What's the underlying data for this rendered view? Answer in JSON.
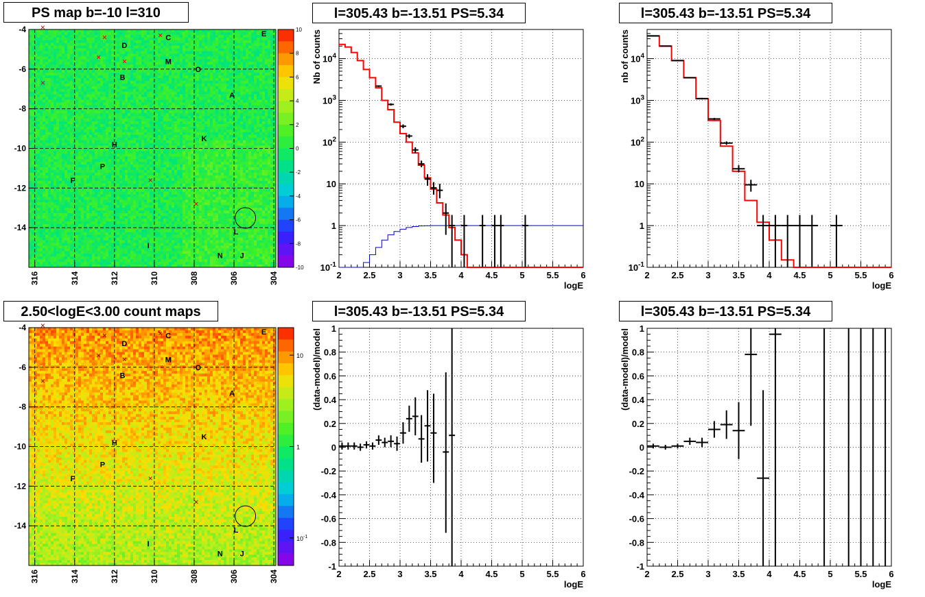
{
  "titles": {
    "psmap": "PS map b=-10 l=310",
    "spec1": "l=305.43 b=-13.51 PS=5.34",
    "spec2": "l=305.43 b=-13.51 PS=5.34",
    "countmap": "2.50<logE<3.00 count maps",
    "res1": "l=305.43 b=-13.51 PS=5.34",
    "res2": "l=305.43 b=-13.51 PS=5.34"
  },
  "map_labels": [
    {
      "t": "E",
      "l": 304.5,
      "b": -4.2
    },
    {
      "t": "C",
      "l": 309.3,
      "b": -4.4
    },
    {
      "t": "D",
      "l": 311.5,
      "b": -4.8
    },
    {
      "t": "M",
      "l": 309.3,
      "b": -5.6
    },
    {
      "t": "O",
      "l": 307.8,
      "b": -6.0
    },
    {
      "t": "B",
      "l": 311.6,
      "b": -6.4
    },
    {
      "t": "A",
      "l": 306.1,
      "b": -7.3
    },
    {
      "t": "H",
      "l": 312.0,
      "b": -9.8
    },
    {
      "t": "K",
      "l": 307.5,
      "b": -9.5
    },
    {
      "t": "P",
      "l": 312.6,
      "b": -10.9
    },
    {
      "t": "F",
      "l": 314.1,
      "b": -11.6
    },
    {
      "t": "L",
      "l": 305.9,
      "b": -14.2
    },
    {
      "t": "I",
      "l": 310.3,
      "b": -14.9
    },
    {
      "t": "N",
      "l": 306.7,
      "b": -15.4
    },
    {
      "t": "J",
      "l": 305.6,
      "b": -15.4
    }
  ],
  "map_crosses": [
    {
      "l": 315.6,
      "b": -3.9
    },
    {
      "l": 312.5,
      "b": -4.4
    },
    {
      "l": 309.7,
      "b": -4.3
    },
    {
      "l": 312.8,
      "b": -5.4
    },
    {
      "l": 311.5,
      "b": -5.6
    },
    {
      "l": 315.6,
      "b": -6.7
    },
    {
      "l": 310.2,
      "b": -11.6
    },
    {
      "l": 307.9,
      "b": -12.8
    }
  ],
  "map_circle": {
    "l": 305.43,
    "b": -13.51
  },
  "chart_data": [
    {
      "type": "heatmap",
      "title": "PS map b=-10 l=310",
      "xlim": [
        316.3,
        303.9
      ],
      "ylim": [
        -16,
        -4
      ],
      "xticks": [
        316,
        314,
        312,
        310,
        308,
        306,
        304
      ],
      "yticks": [
        -4,
        -6,
        -8,
        -10,
        -12,
        -14
      ],
      "colorbar": {
        "min": -10,
        "max": 10,
        "ticks": [
          10,
          8,
          6,
          4,
          2,
          0,
          -2,
          -4,
          -6,
          -8,
          -10
        ]
      }
    },
    {
      "type": "line",
      "title": "l=305.43 b=-13.51 PS=5.34",
      "xlabel": "logE",
      "ylabel": "Nb of counts",
      "yscale": "log",
      "xlim": [
        2,
        6
      ],
      "ylim": [
        0.1,
        50000
      ],
      "xticks": [
        2,
        2.5,
        3,
        3.5,
        4,
        4.5,
        5,
        5.5,
        6
      ],
      "yticks": [
        {
          "v": 0.1,
          "t": "10",
          "sup": "-1"
        },
        {
          "v": 1,
          "t": "1",
          "sup": ""
        },
        {
          "v": 10,
          "t": "10",
          "sup": ""
        },
        {
          "v": 100,
          "t": "10",
          "sup": "2"
        },
        {
          "v": 1000,
          "t": "10",
          "sup": "3"
        },
        {
          "v": 10000,
          "t": "10",
          "sup": "4"
        }
      ],
      "model_red": {
        "edges": [
          2.0,
          2.1,
          2.2,
          2.3,
          2.4,
          2.5,
          2.6,
          2.7,
          2.8,
          2.9,
          3.0,
          3.1,
          3.2,
          3.3,
          3.4,
          3.5,
          3.6,
          3.7,
          3.8,
          3.9,
          4.0,
          4.1,
          4.2,
          6.0
        ],
        "values": [
          22000,
          19000,
          14000,
          9000,
          5500,
          3500,
          2000,
          1000,
          600,
          300,
          160,
          100,
          55,
          28,
          14,
          7.5,
          3.5,
          1.8,
          0.9,
          0.45,
          0.2,
          0.1,
          0.1
        ]
      },
      "model_blue": {
        "edges": [
          2.0,
          2.1,
          2.2,
          2.3,
          2.4,
          2.5,
          2.6,
          2.7,
          2.8,
          2.9,
          3.0,
          3.1,
          3.2,
          3.3,
          3.4,
          3.5,
          6.0
        ],
        "values": [
          0.1,
          0.1,
          0.1,
          0.1,
          0.13,
          0.2,
          0.3,
          0.45,
          0.6,
          0.72,
          0.82,
          0.9,
          0.95,
          0.98,
          0.99,
          1.0
        ]
      },
      "data": [
        {
          "x": 2.65,
          "y": 2200,
          "ylo": 2100,
          "yhi": 2300
        },
        {
          "x": 2.85,
          "y": 800,
          "ylo": 750,
          "yhi": 850
        },
        {
          "x": 3.05,
          "y": 240,
          "ylo": 215,
          "yhi": 265
        },
        {
          "x": 3.15,
          "y": 140,
          "ylo": 125,
          "yhi": 155
        },
        {
          "x": 3.25,
          "y": 65,
          "ylo": 55,
          "yhi": 75
        },
        {
          "x": 3.35,
          "y": 30,
          "ylo": 25,
          "yhi": 36
        },
        {
          "x": 3.45,
          "y": 13,
          "ylo": 9,
          "yhi": 17
        },
        {
          "x": 3.55,
          "y": 8,
          "ylo": 5.5,
          "yhi": 11
        },
        {
          "x": 3.65,
          "y": 7,
          "ylo": 4.5,
          "yhi": 10
        },
        {
          "x": 3.75,
          "y": 2,
          "ylo": 0.6,
          "yhi": 3.4
        },
        {
          "x": 3.85,
          "y": 1,
          "ylo": 0.1,
          "yhi": 1.8
        },
        {
          "x": 4.05,
          "y": 1,
          "ylo": 0.1,
          "yhi": 1.8
        },
        {
          "x": 4.35,
          "y": 1,
          "ylo": 0.1,
          "yhi": 1.8
        },
        {
          "x": 4.55,
          "y": 1,
          "ylo": 0.1,
          "yhi": 1.8
        },
        {
          "x": 4.65,
          "y": 1,
          "ylo": 0.1,
          "yhi": 1.8
        },
        {
          "x": 5.05,
          "y": 1,
          "ylo": 0.1,
          "yhi": 1.8
        }
      ]
    },
    {
      "type": "line",
      "title": "l=305.43 b=-13.51 PS=5.34",
      "xlabel": "logE",
      "ylabel": "nb of counts",
      "yscale": "log",
      "xlim": [
        2,
        6
      ],
      "ylim": [
        0.1,
        50000
      ],
      "xticks": [
        2,
        2.5,
        3,
        3.5,
        4,
        4.5,
        5,
        5.5,
        6
      ],
      "yticks": [
        {
          "v": 0.1,
          "t": "10",
          "sup": "-1"
        },
        {
          "v": 1,
          "t": "1",
          "sup": ""
        },
        {
          "v": 10,
          "t": "10",
          "sup": ""
        },
        {
          "v": 100,
          "t": "10",
          "sup": "2"
        },
        {
          "v": 1000,
          "t": "10",
          "sup": "3"
        },
        {
          "v": 10000,
          "t": "10",
          "sup": "4"
        }
      ],
      "model_red": {
        "edges": [
          2.0,
          2.2,
          2.4,
          2.6,
          2.8,
          3.0,
          3.2,
          3.4,
          3.6,
          3.8,
          4.0,
          4.2,
          4.4,
          6.0
        ],
        "values": [
          35000,
          20000,
          9000,
          3500,
          1100,
          330,
          80,
          20,
          4,
          1.2,
          0.45,
          0.15,
          0.1
        ]
      },
      "data": [
        {
          "x": 2.1,
          "y": 35000,
          "ylo": 34000,
          "yhi": 36000,
          "xw": 0.1
        },
        {
          "x": 2.3,
          "y": 20000,
          "ylo": 19500,
          "yhi": 20500,
          "xw": 0.1
        },
        {
          "x": 2.5,
          "y": 9000,
          "ylo": 8800,
          "yhi": 9200,
          "xw": 0.1
        },
        {
          "x": 2.7,
          "y": 3500,
          "ylo": 3400,
          "yhi": 3600,
          "xw": 0.1
        },
        {
          "x": 2.9,
          "y": 1100,
          "ylo": 1050,
          "yhi": 1150,
          "xw": 0.1
        },
        {
          "x": 3.1,
          "y": 360,
          "ylo": 340,
          "yhi": 380,
          "xw": 0.1
        },
        {
          "x": 3.3,
          "y": 95,
          "ylo": 86,
          "yhi": 104,
          "xw": 0.1
        },
        {
          "x": 3.5,
          "y": 23,
          "ylo": 19,
          "yhi": 28,
          "xw": 0.1
        },
        {
          "x": 3.7,
          "y": 9.5,
          "ylo": 6.5,
          "yhi": 12.5,
          "xw": 0.1
        },
        {
          "x": 3.9,
          "y": 1,
          "ylo": 0.1,
          "yhi": 1.8,
          "xw": 0.1
        },
        {
          "x": 4.1,
          "y": 1,
          "ylo": 0.1,
          "yhi": 1.8,
          "xw": 0.1
        },
        {
          "x": 4.3,
          "y": 1,
          "ylo": 0.1,
          "yhi": 1.8,
          "xw": 0.1
        },
        {
          "x": 4.5,
          "y": 1,
          "ylo": 0.1,
          "yhi": 1.8,
          "xw": 0.1
        },
        {
          "x": 4.7,
          "y": 1,
          "ylo": 0.1,
          "yhi": 1.8,
          "xw": 0.1
        },
        {
          "x": 5.1,
          "y": 1,
          "ylo": 0.1,
          "yhi": 1.8,
          "xw": 0.1
        }
      ]
    },
    {
      "type": "heatmap",
      "title": "2.50<logE<3.00 count maps",
      "xlim": [
        316.3,
        303.9
      ],
      "ylim": [
        -16,
        -4
      ],
      "xticks": [
        316,
        314,
        312,
        310,
        308,
        306,
        304
      ],
      "yticks": [
        -4,
        -6,
        -8,
        -10,
        -12,
        -14
      ],
      "colorbar": {
        "scale": "log",
        "min": 0.05,
        "max": 20,
        "ticks": [
          {
            "v": 10,
            "t": "10",
            "sup": ""
          },
          {
            "v": 1,
            "t": "1",
            "sup": ""
          },
          {
            "v": 0.1,
            "t": "10",
            "sup": "-1"
          }
        ]
      }
    },
    {
      "type": "scatter",
      "title": "l=305.43 b=-13.51 PS=5.34",
      "xlabel": "logE",
      "ylabel": "(data-model)/model",
      "xlim": [
        2,
        6
      ],
      "ylim": [
        -1,
        1
      ],
      "xticks": [
        2,
        2.5,
        3,
        3.5,
        4,
        4.5,
        5,
        5.5,
        6
      ],
      "yticks": [
        1,
        0.8,
        0.6,
        0.4,
        0.2,
        0,
        -0.2,
        -0.4,
        -0.6,
        -0.8,
        -1
      ],
      "data": [
        {
          "x": 2.05,
          "y": 0.01,
          "ylo": -0.02,
          "yhi": 0.04,
          "xw": 0.05
        },
        {
          "x": 2.15,
          "y": 0.01,
          "ylo": -0.02,
          "yhi": 0.04,
          "xw": 0.05
        },
        {
          "x": 2.25,
          "y": 0.01,
          "ylo": -0.02,
          "yhi": 0.04,
          "xw": 0.05
        },
        {
          "x": 2.35,
          "y": 0.0,
          "ylo": -0.03,
          "yhi": 0.03,
          "xw": 0.05
        },
        {
          "x": 2.45,
          "y": 0.02,
          "ylo": -0.01,
          "yhi": 0.05,
          "xw": 0.05
        },
        {
          "x": 2.55,
          "y": 0.01,
          "ylo": -0.02,
          "yhi": 0.04,
          "xw": 0.05
        },
        {
          "x": 2.65,
          "y": 0.06,
          "ylo": 0.02,
          "yhi": 0.1,
          "xw": 0.05
        },
        {
          "x": 2.75,
          "y": 0.04,
          "ylo": 0.0,
          "yhi": 0.08,
          "xw": 0.05
        },
        {
          "x": 2.85,
          "y": 0.05,
          "ylo": 0.0,
          "yhi": 0.1,
          "xw": 0.05
        },
        {
          "x": 2.95,
          "y": 0.03,
          "ylo": -0.03,
          "yhi": 0.09,
          "xw": 0.05
        },
        {
          "x": 3.05,
          "y": 0.12,
          "ylo": 0.03,
          "yhi": 0.21,
          "xw": 0.05
        },
        {
          "x": 3.15,
          "y": 0.24,
          "ylo": 0.13,
          "yhi": 0.35,
          "xw": 0.05
        },
        {
          "x": 3.25,
          "y": 0.26,
          "ylo": 0.1,
          "yhi": 0.42,
          "xw": 0.05
        },
        {
          "x": 3.35,
          "y": 0.07,
          "ylo": -0.13,
          "yhi": 0.27,
          "xw": 0.05
        },
        {
          "x": 3.45,
          "y": 0.18,
          "ylo": -0.12,
          "yhi": 0.48,
          "xw": 0.05
        },
        {
          "x": 3.55,
          "y": 0.12,
          "ylo": -0.3,
          "yhi": 0.45,
          "xw": 0.05
        },
        {
          "x": 3.75,
          "y": -0.04,
          "ylo": -0.72,
          "yhi": 0.63,
          "xw": 0.05
        },
        {
          "x": 3.85,
          "y": 0.1,
          "ylo": -1,
          "yhi": 1,
          "xw": 0.05
        }
      ]
    },
    {
      "type": "scatter",
      "title": "l=305.43 b=-13.51 PS=5.34",
      "xlabel": "logE",
      "ylabel": "(data-model)/model",
      "xlim": [
        2,
        6
      ],
      "ylim": [
        -1,
        1
      ],
      "xticks": [
        2,
        2.5,
        3,
        3.5,
        4,
        4.5,
        5,
        5.5,
        6
      ],
      "yticks": [
        1,
        0.8,
        0.6,
        0.4,
        0.2,
        0,
        -0.2,
        -0.4,
        -0.6,
        -0.8,
        -1
      ],
      "data": [
        {
          "x": 2.1,
          "y": 0.01,
          "ylo": -0.01,
          "yhi": 0.03,
          "xw": 0.1
        },
        {
          "x": 2.3,
          "y": 0.0,
          "ylo": -0.02,
          "yhi": 0.02,
          "xw": 0.1
        },
        {
          "x": 2.5,
          "y": 0.01,
          "ylo": -0.01,
          "yhi": 0.03,
          "xw": 0.1
        },
        {
          "x": 2.7,
          "y": 0.05,
          "ylo": 0.02,
          "yhi": 0.08,
          "xw": 0.1
        },
        {
          "x": 2.9,
          "y": 0.04,
          "ylo": 0.0,
          "yhi": 0.08,
          "xw": 0.1
        },
        {
          "x": 3.1,
          "y": 0.15,
          "ylo": 0.08,
          "yhi": 0.22,
          "xw": 0.1
        },
        {
          "x": 3.3,
          "y": 0.19,
          "ylo": 0.07,
          "yhi": 0.31,
          "xw": 0.1
        },
        {
          "x": 3.5,
          "y": 0.14,
          "ylo": -0.1,
          "yhi": 0.38,
          "xw": 0.1
        },
        {
          "x": 3.7,
          "y": 0.78,
          "ylo": 0.18,
          "yhi": 1.0,
          "xw": 0.1
        },
        {
          "x": 3.9,
          "y": -0.26,
          "ylo": -1,
          "yhi": 0.48,
          "xw": 0.1
        },
        {
          "x": 4.1,
          "y": 0.95,
          "ylo": -1,
          "yhi": 1,
          "xw": 0.1
        },
        {
          "x": 4.9,
          "y": 1.0,
          "ylo": -1,
          "yhi": 1,
          "xw": 0.0
        },
        {
          "x": 5.3,
          "y": 1.0,
          "ylo": -1,
          "yhi": 1,
          "xw": 0.0
        },
        {
          "x": 5.5,
          "y": 1.0,
          "ylo": -1,
          "yhi": 1,
          "xw": 0.0
        },
        {
          "x": 5.7,
          "y": 1.0,
          "ylo": -1,
          "yhi": 1,
          "xw": 0.0
        },
        {
          "x": 5.9,
          "y": 1.0,
          "ylo": -1,
          "yhi": 1,
          "xw": 0.0
        }
      ]
    }
  ]
}
